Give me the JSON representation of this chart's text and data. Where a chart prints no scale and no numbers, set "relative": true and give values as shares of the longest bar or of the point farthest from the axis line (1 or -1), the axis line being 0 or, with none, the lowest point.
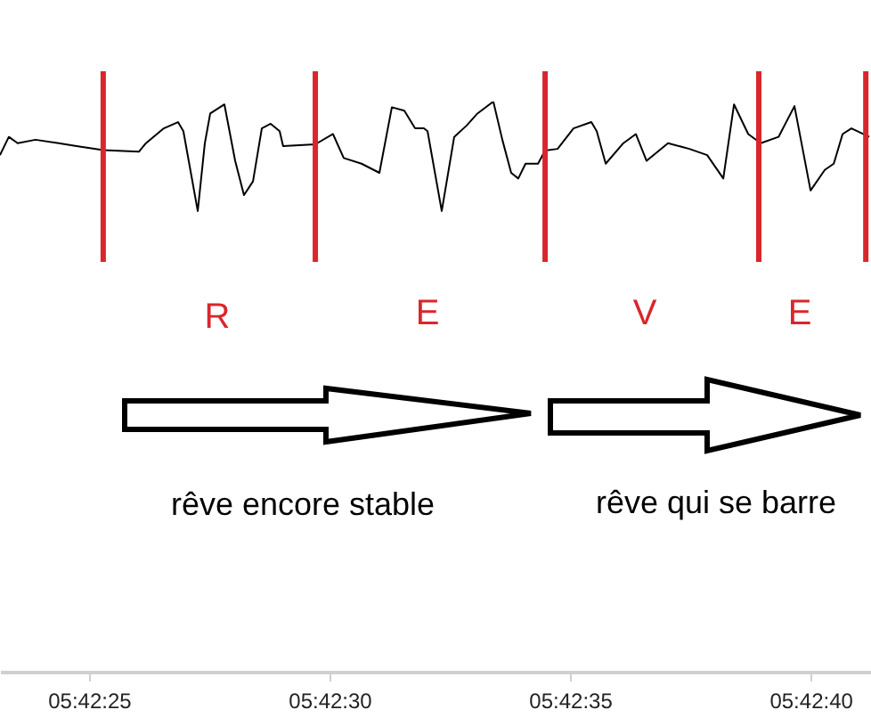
{
  "chart_data": {
    "type": "line",
    "relative": true,
    "color": "#000000",
    "x": [
      5.70643,
      5.706481,
      5.706532,
      5.706635,
      5.706769,
      5.706872,
      5.707026,
      5.707232,
      5.707273,
      5.707376,
      5.707458,
      5.707489,
      5.707572,
      5.707613,
      5.707644,
      5.707726,
      5.707788,
      5.707839,
      5.707891,
      5.707942,
      5.707993,
      5.708045,
      5.708065,
      5.708251,
      5.708353,
      5.708415,
      5.708518,
      5.708621,
      5.708693,
      5.708765,
      5.708827,
      5.708878,
      5.708899,
      5.708981,
      5.709053,
      5.709125,
      5.709187,
      5.709279,
      5.709331,
      5.709382,
      5.709423,
      5.709465,
      5.709537,
      5.709578,
      5.70965,
      5.709742,
      5.709845,
      5.709876,
      5.709928,
      5.71003,
      5.710102,
      5.710164,
      5.710288,
      5.710411,
      5.710514,
      5.710607,
      5.710669,
      5.710751,
      5.710823,
      5.710926,
      5.711018,
      5.711111,
      5.711193,
      5.711245,
      5.711296,
      5.711347,
      5.71145
    ],
    "values": [
      0.906,
      0.938,
      0.927,
      0.933,
      0.927,
      0.922,
      0.915,
      0.912,
      0.927,
      0.953,
      0.964,
      0.948,
      0.808,
      0.927,
      0.979,
      0.995,
      0.896,
      0.836,
      0.86,
      0.953,
      0.961,
      0.948,
      0.922,
      0.925,
      0.943,
      0.901,
      0.891,
      0.875,
      0.99,
      0.984,
      0.953,
      0.953,
      0.948,
      0.808,
      0.938,
      0.958,
      0.979,
      1,
      0.933,
      0.875,
      0.865,
      0.891,
      0.891,
      0.914,
      0.917,
      0.953,
      0.964,
      0.948,
      0.891,
      0.927,
      0.943,
      0.896,
      0.927,
      0.917,
      0.906,
      0.865,
      0.995,
      0.943,
      0.927,
      0.938,
      0.992,
      0.844,
      0.88,
      0.891,
      0.943,
      0.953,
      0.938
    ],
    "xlim": [
      5.70643,
      5.71146
    ],
    "xticks": [
      {
        "value": 5.706944,
        "label": "05:42:25"
      },
      {
        "value": 5.708333,
        "label": "05:42:30"
      },
      {
        "value": 5.709722,
        "label": "05:42:35"
      },
      {
        "value": 5.711111,
        "label": "05:42:40"
      }
    ],
    "ref_lines": [
      {
        "axis": "x",
        "value": 5.707026,
        "color": "#d9262c"
      },
      {
        "axis": "x",
        "value": 5.708251,
        "color": "#d9262c"
      },
      {
        "axis": "x",
        "value": 5.709578,
        "color": "#d9262c"
      },
      {
        "axis": "x",
        "value": 5.710812,
        "color": "#d9262c"
      },
      {
        "axis": "x",
        "value": 5.71143,
        "color": "#d9262c"
      }
    ],
    "annotations": [
      "R",
      "E",
      "V",
      "E",
      "rêve encore stable",
      "rêve qui se barre"
    ]
  }
}
